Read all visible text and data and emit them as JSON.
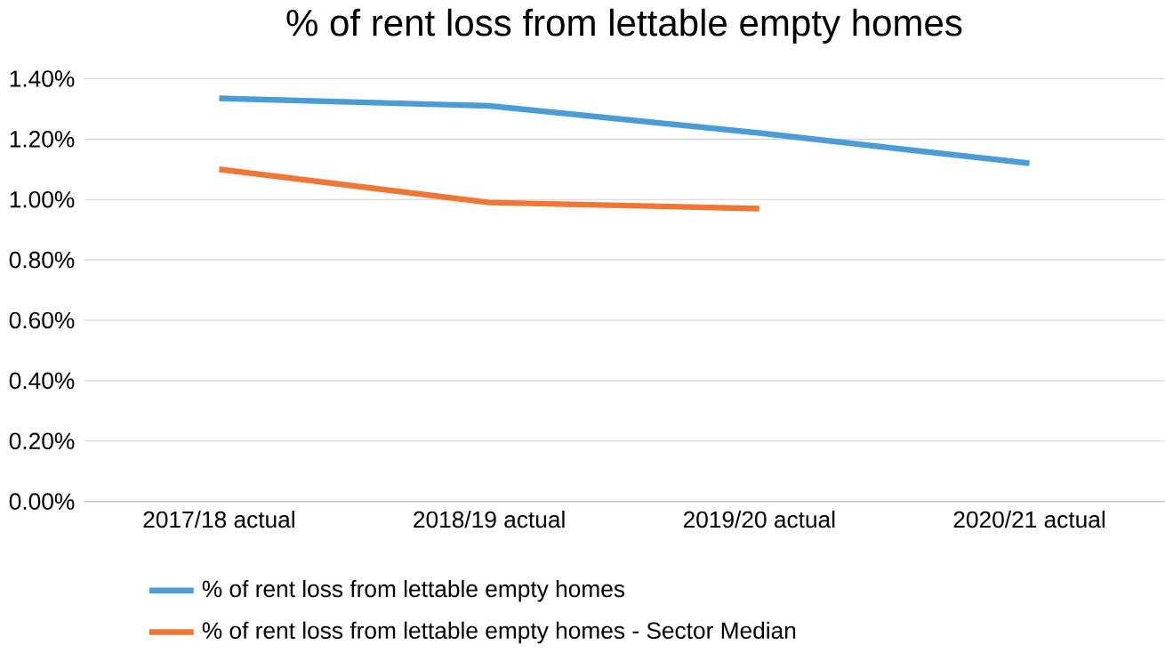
{
  "chart_data": {
    "type": "line",
    "title": "% of rent loss from lettable empty homes",
    "categories": [
      "2017/18 actual",
      "2018/19 actual",
      "2019/20 actual",
      "2020/21 actual"
    ],
    "series": [
      {
        "name": "% of rent loss from lettable empty homes",
        "color": "#4a9bd6",
        "values": [
          1.335,
          1.31,
          1.22,
          1.12
        ]
      },
      {
        "name": "% of rent loss from lettable empty homes - Sector Median",
        "color": "#ef7634",
        "values": [
          1.1,
          0.99,
          0.97,
          null
        ]
      }
    ],
    "ylim": [
      0,
      1.4
    ],
    "yticks": [
      {
        "value": 0,
        "label": "0.00%"
      },
      {
        "value": 0.2,
        "label": "0.20%"
      },
      {
        "value": 0.4,
        "label": "0.40%"
      },
      {
        "value": 0.6,
        "label": "0.60%"
      },
      {
        "value": 0.8,
        "label": "0.80%"
      },
      {
        "value": 1.0,
        "label": "1.00%"
      },
      {
        "value": 1.2,
        "label": "1.20%"
      },
      {
        "value": 1.4,
        "label": "1.40%"
      }
    ],
    "grid": "y",
    "legend": "bottom",
    "marker": "none",
    "line_style": "solid"
  }
}
